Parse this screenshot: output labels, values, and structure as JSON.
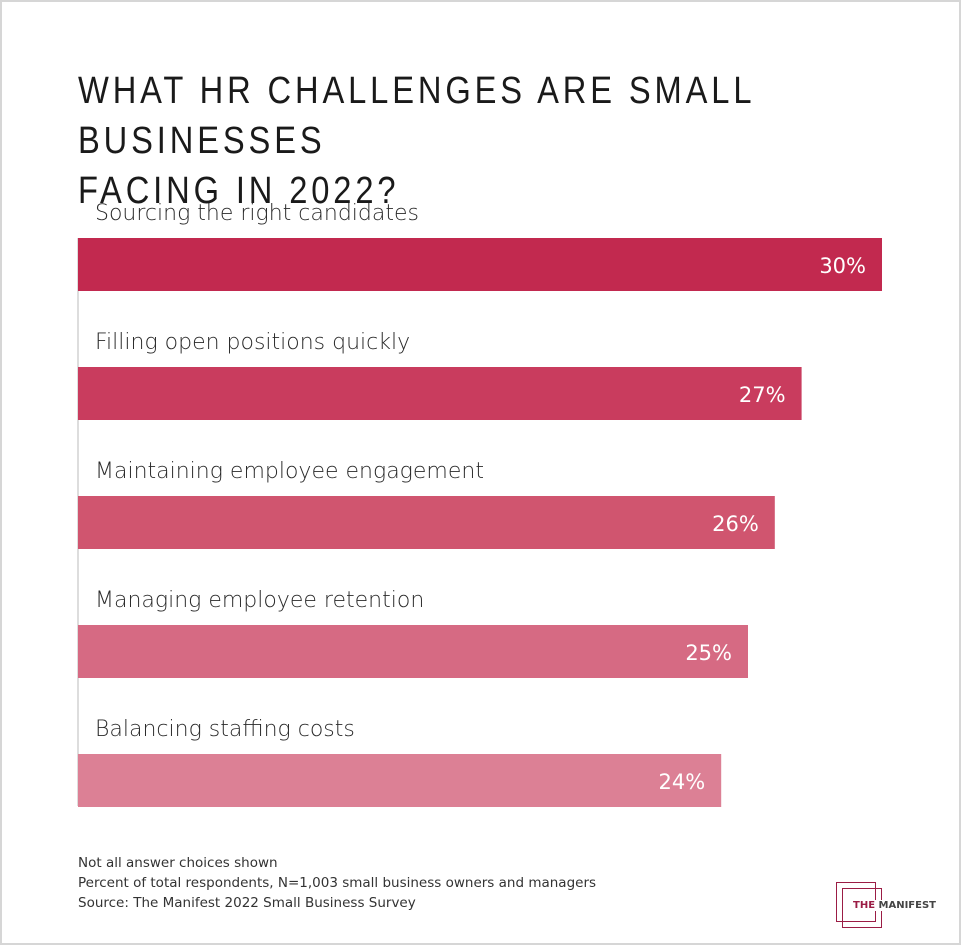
{
  "title_line1": "WHAT HR CHALLENGES ARE SMALL BUSINESSES",
  "title_line2": "FACING IN 2022?",
  "chart_data": {
    "type": "bar",
    "orientation": "horizontal",
    "categories": [
      "Sourcing the right candidates",
      "Filling open positions quickly",
      "Maintaining employee engagement",
      "Managing employee retention",
      "Balancing staffing costs"
    ],
    "values": [
      30,
      27,
      26,
      25,
      24
    ],
    "value_labels": [
      "30%",
      "27%",
      "26%",
      "25%",
      "24%"
    ],
    "colors": [
      "#C2294F",
      "#C93C5E",
      "#D0556F",
      "#D66A83",
      "#DC8095"
    ],
    "xlim": [
      0,
      30
    ],
    "grid": false
  },
  "notes": [
    "Not all answer choices shown",
    "Percent of total respondents, N=1,003 small business owners and managers",
    "Source: The Manifest 2022 Small Business Survey"
  ],
  "logo": {
    "the": "THE",
    "name": "MANIFEST",
    "color": "#9B1D45"
  }
}
